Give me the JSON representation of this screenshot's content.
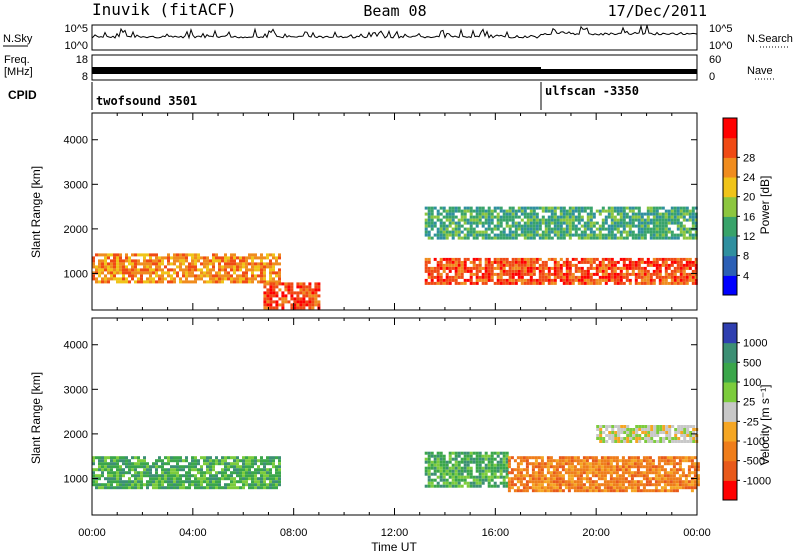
{
  "header": {
    "station": "Inuvik (fitACF)",
    "beam": "Beam 08",
    "date": "17/Dec/2011"
  },
  "nsky": {
    "label": "N.Sky",
    "tick_top": "10^5",
    "tick_bottom": "10^0",
    "right_label": "N.Search",
    "right_tick_top": "10^5",
    "right_tick_bottom": "10^0"
  },
  "freq": {
    "label_line1": "Freq.",
    "label_line2": "[MHz]",
    "tick_top": "18",
    "tick_bottom": "8",
    "right_label": "Nave",
    "right_tick_top": "60",
    "right_tick_bottom": "0"
  },
  "cpid": {
    "label": "CPID",
    "modes": [
      {
        "name": "twofsound 3501",
        "start_hour": 0
      },
      {
        "name": "ulfscan -3350",
        "start_hour": 18
      }
    ]
  },
  "power_panel": {
    "ylabel": "Slant Range [km]",
    "colorbar_label": "Power [dB]",
    "colorbar_ticks": [
      "4",
      "8",
      "12",
      "16",
      "20",
      "24",
      "28"
    ],
    "colors": [
      "#0000ff",
      "#2b5fb5",
      "#2f8f9f",
      "#38a36a",
      "#8cc63f",
      "#f0c419",
      "#f08c1e",
      "#f04a14",
      "#ff0000"
    ]
  },
  "velocity_panel": {
    "ylabel": "Slant Range [km]",
    "colorbar_label": "Velocity [m s⁻¹]",
    "colorbar_ticks": [
      "1000",
      "500",
      "100",
      "25",
      "-25",
      "-100",
      "-500",
      "-1000"
    ],
    "colors": [
      "#2f3fb0",
      "#3c8f74",
      "#3aa64a",
      "#7ccc3c",
      "#c8c8c8",
      "#f5a623",
      "#ef7d1a",
      "#e8591a",
      "#ff0000"
    ]
  },
  "axes": {
    "xlabel": "Time UT",
    "xticks": [
      "00:00",
      "04:00",
      "08:00",
      "12:00",
      "16:00",
      "20:00",
      "00:00"
    ],
    "yticks": [
      "1000",
      "2000",
      "3000",
      "4000"
    ]
  },
  "chart_data": [
    {
      "type": "heatmap",
      "title": "Power",
      "xlabel": "Time UT",
      "ylabel": "Slant Range [km]",
      "xlim_hours": [
        0,
        24
      ],
      "ylim_km": [
        180,
        4600
      ],
      "colorbar": {
        "label": "Power [dB]",
        "range": [
          0,
          32
        ],
        "ticks": [
          4,
          8,
          12,
          16,
          20,
          24,
          28
        ]
      },
      "bands": [
        {
          "t_start": 0,
          "t_end": 7.4,
          "range_min_km": 800,
          "range_max_km": 1450,
          "value_db": 24
        },
        {
          "t_start": 6.8,
          "t_end": 9.0,
          "range_min_km": 200,
          "range_max_km": 800,
          "value_db": 26
        },
        {
          "t_start": 13.2,
          "t_end": 24,
          "range_min_km": 750,
          "range_max_km": 1350,
          "value_db": 26
        },
        {
          "t_start": 13.2,
          "t_end": 24,
          "range_min_km": 1800,
          "range_max_km": 2500,
          "value_db": 12
        }
      ]
    },
    {
      "type": "heatmap",
      "title": "Velocity",
      "xlabel": "Time UT",
      "ylabel": "Slant Range [km]",
      "xlim_hours": [
        0,
        24
      ],
      "ylim_km": [
        180,
        4600
      ],
      "colorbar": {
        "label": "Velocity [m s⁻¹]",
        "range": [
          -1000,
          1000
        ],
        "ticks": [
          1000,
          500,
          100,
          25,
          -25,
          -100,
          -500,
          -1000
        ]
      },
      "bands": [
        {
          "t_start": 0,
          "t_end": 7.4,
          "range_min_km": 800,
          "range_max_km": 1500,
          "value_ms": 100
        },
        {
          "t_start": 13.2,
          "t_end": 16.5,
          "range_min_km": 800,
          "range_max_km": 1600,
          "value_ms": 200
        },
        {
          "t_start": 16.5,
          "t_end": 24,
          "range_min_km": 700,
          "range_max_km": 1500,
          "value_ms": -300
        },
        {
          "t_start": 20,
          "t_end": 24,
          "range_min_km": 1800,
          "range_max_km": 2200,
          "value_ms": 0
        }
      ]
    }
  ]
}
